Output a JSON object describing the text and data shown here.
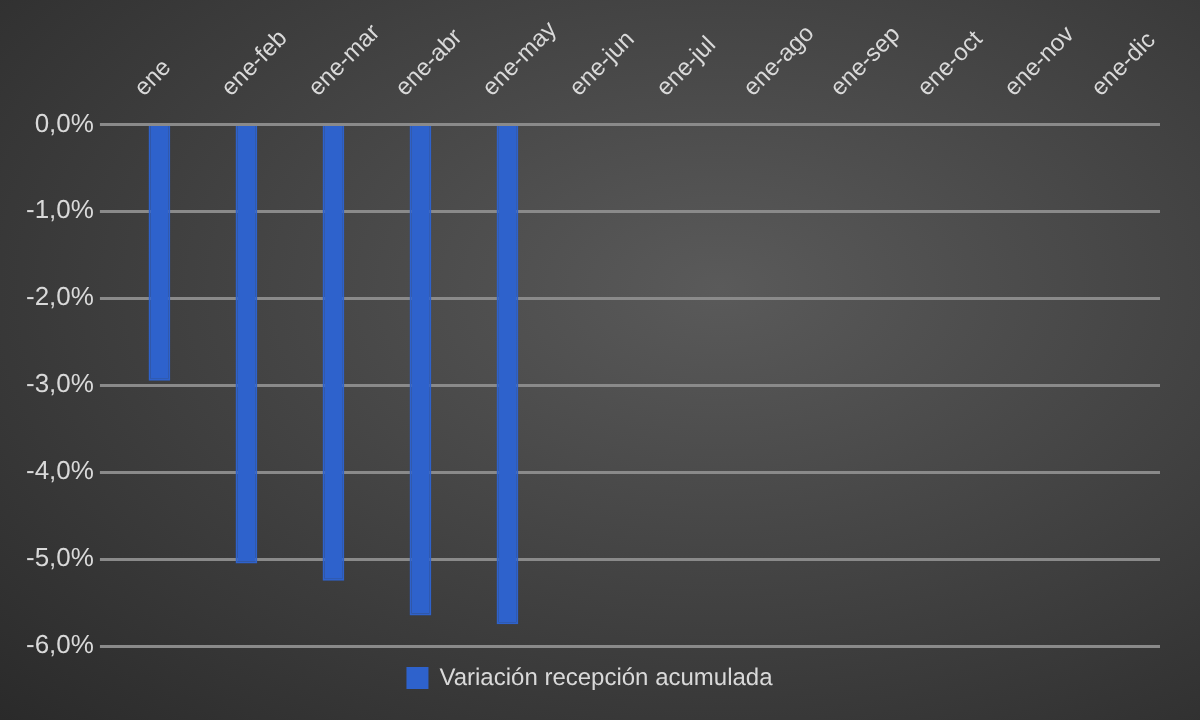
{
  "chart_data": {
    "type": "bar",
    "categories": [
      "ene",
      "ene-feb",
      "ene-mar",
      "ene-abr",
      "ene-may",
      "ene-jun",
      "ene-jul",
      "ene-ago",
      "ene-sep",
      "ene-oct",
      "ene-nov",
      "ene-dic"
    ],
    "series": [
      {
        "name": "Variación recepción acumulada",
        "color": "#2e62cc",
        "values": [
          -2.95,
          -5.05,
          -5.25,
          -5.65,
          -5.75,
          null,
          null,
          null,
          null,
          null,
          null,
          null
        ]
      }
    ],
    "ylim": [
      -6,
      0
    ],
    "yticks": [
      {
        "value": 0,
        "label": "0,0%"
      },
      {
        "value": -1,
        "label": "-1,0%"
      },
      {
        "value": -2,
        "label": "-2,0%"
      },
      {
        "value": -3,
        "label": "-3,0%"
      },
      {
        "value": -4,
        "label": "-4,0%"
      },
      {
        "value": -5,
        "label": "-5,0%"
      },
      {
        "value": -6,
        "label": "-6,0%"
      }
    ],
    "grid": "y",
    "legend": "bottom"
  }
}
